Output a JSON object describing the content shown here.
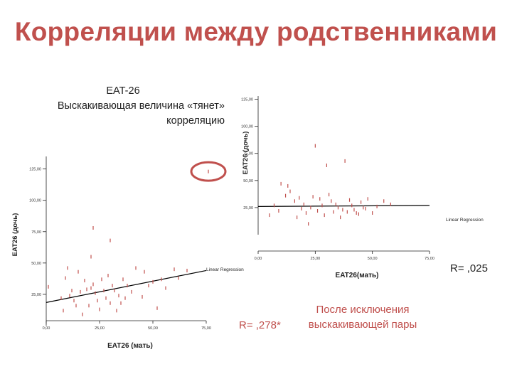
{
  "slide": {
    "title": "Корреляции между родственниками",
    "annotation": {
      "line1": "EAT-26",
      "line2": "Выскакивающая величина «тянет»",
      "line3": "корреляцию"
    },
    "r_left": "R= ,278*",
    "r_right": "R= ,025",
    "note": {
      "line1": "После исключения",
      "line2": "выскакивающей пары"
    },
    "colors": {
      "title": "#c0504d",
      "points": "#c0504d",
      "outlier_circle": "#c0504d",
      "regression": "#000000",
      "axis": "#222222"
    }
  },
  "chart_data": [
    {
      "type": "scatter",
      "title": "",
      "xlabel": "EAT26 (мать)",
      "ylabel": "EAT26 (дочь)",
      "x_ticks": [
        "0,00",
        "25,00",
        "50,00",
        "75,00"
      ],
      "y_ticks": [
        "25,00",
        "50,00",
        "75,00",
        "100,00",
        "125,00"
      ],
      "xlim": [
        0,
        75
      ],
      "ylim": [
        0,
        135
      ],
      "legend_label": "Linear Regression",
      "regression": [
        [
          0,
          18.5
        ],
        [
          75,
          44
        ]
      ],
      "outlier": [
        76,
        123
      ],
      "points": [
        [
          1,
          31
        ],
        [
          7,
          22
        ],
        [
          8,
          12
        ],
        [
          9,
          38
        ],
        [
          10,
          46
        ],
        [
          11,
          24
        ],
        [
          12,
          28
        ],
        [
          13,
          20
        ],
        [
          14,
          16
        ],
        [
          15,
          43
        ],
        [
          16,
          27
        ],
        [
          17,
          9
        ],
        [
          18,
          36
        ],
        [
          19,
          29
        ],
        [
          20,
          16
        ],
        [
          21,
          30
        ],
        [
          21,
          55
        ],
        [
          22,
          33
        ],
        [
          22,
          78
        ],
        [
          23,
          26
        ],
        [
          24,
          20
        ],
        [
          25,
          13
        ],
        [
          26,
          37
        ],
        [
          27,
          28
        ],
        [
          28,
          22
        ],
        [
          29,
          40
        ],
        [
          30,
          18
        ],
        [
          30,
          68
        ],
        [
          31,
          32
        ],
        [
          32,
          28
        ],
        [
          33,
          12
        ],
        [
          34,
          24
        ],
        [
          35,
          18
        ],
        [
          36,
          37
        ],
        [
          37,
          22
        ],
        [
          38,
          32
        ],
        [
          40,
          27
        ],
        [
          42,
          46
        ],
        [
          45,
          23
        ],
        [
          46,
          43
        ],
        [
          48,
          32
        ],
        [
          50,
          35
        ],
        [
          52,
          14
        ],
        [
          54,
          37
        ],
        [
          56,
          30
        ],
        [
          60,
          45
        ],
        [
          62,
          38
        ],
        [
          66,
          44
        ]
      ]
    },
    {
      "type": "scatter",
      "title": "",
      "xlabel": "EAT26(мать)",
      "ylabel": "EAT26 (дочь)",
      "x_ticks": [
        "0,00",
        "25,00",
        "50,00",
        "75,00"
      ],
      "y_ticks": [
        "25,00",
        "50,00",
        "75,00",
        "100,00",
        "125,00"
      ],
      "xlim": [
        0,
        75
      ],
      "ylim": [
        0,
        128
      ],
      "legend_label": "Linear Regression",
      "regression": [
        [
          0,
          26
        ],
        [
          75,
          27
        ]
      ],
      "points": [
        [
          5,
          18
        ],
        [
          7,
          27
        ],
        [
          9,
          22
        ],
        [
          10,
          47
        ],
        [
          12,
          36
        ],
        [
          13,
          45
        ],
        [
          14,
          40
        ],
        [
          16,
          31
        ],
        [
          17,
          16
        ],
        [
          18,
          34
        ],
        [
          19,
          24
        ],
        [
          20,
          28
        ],
        [
          21,
          20
        ],
        [
          22,
          10
        ],
        [
          23,
          25
        ],
        [
          24,
          35
        ],
        [
          25,
          82
        ],
        [
          26,
          22
        ],
        [
          27,
          33
        ],
        [
          28,
          27
        ],
        [
          29,
          18
        ],
        [
          30,
          64
        ],
        [
          31,
          37
        ],
        [
          32,
          31
        ],
        [
          33,
          21
        ],
        [
          34,
          28
        ],
        [
          35,
          25
        ],
        [
          36,
          16
        ],
        [
          37,
          23
        ],
        [
          38,
          68
        ],
        [
          39,
          21
        ],
        [
          40,
          32
        ],
        [
          41,
          27
        ],
        [
          42,
          23
        ],
        [
          43,
          20
        ],
        [
          44,
          19
        ],
        [
          45,
          30
        ],
        [
          46,
          25
        ],
        [
          47,
          24
        ],
        [
          48,
          33
        ],
        [
          50,
          20
        ],
        [
          52,
          26
        ],
        [
          55,
          31
        ],
        [
          58,
          28
        ]
      ]
    }
  ]
}
